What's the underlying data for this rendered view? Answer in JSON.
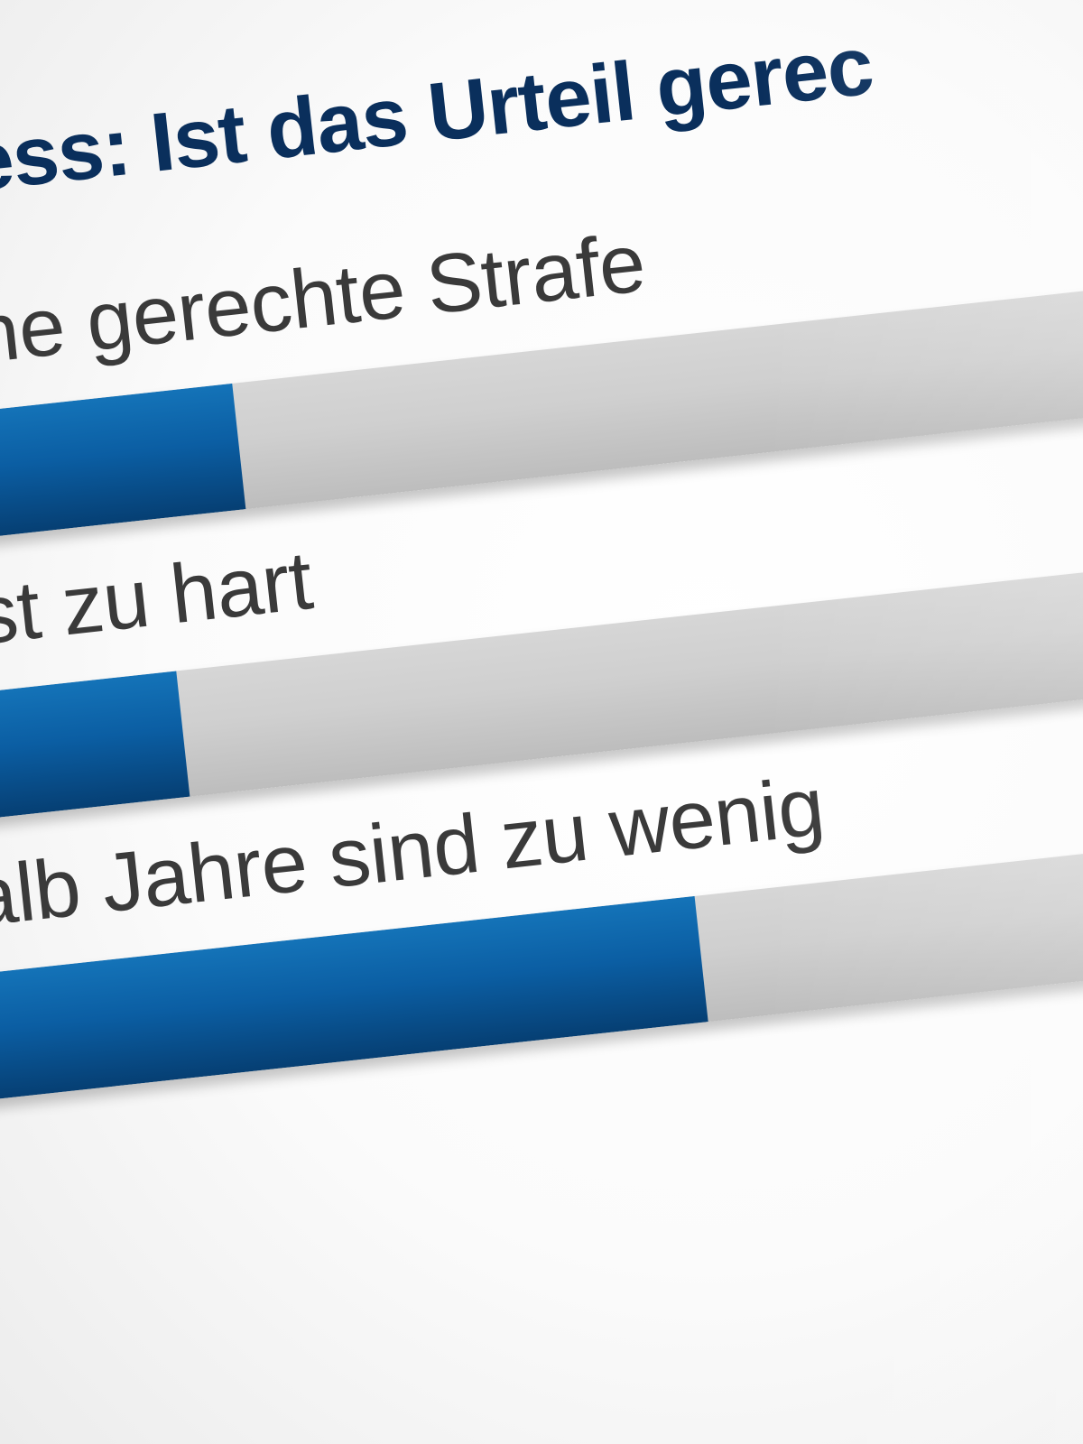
{
  "poll": {
    "title": "rozess: Ist das Urteil gerec",
    "options": [
      {
        "label": "t eine gerechte Strafe",
        "fill_fraction": 0.25
      },
      {
        "label": "s ist zu hart",
        "fill_fraction": 0.19
      },
      {
        "label": "halb Jahre sind zu wenig",
        "fill_fraction": 0.53
      }
    ]
  },
  "colors": {
    "title": "#0a2f5c",
    "bar_fill": "#0b5ea3",
    "bar_track": "#cfcfcf",
    "label": "#3a3a3a"
  }
}
